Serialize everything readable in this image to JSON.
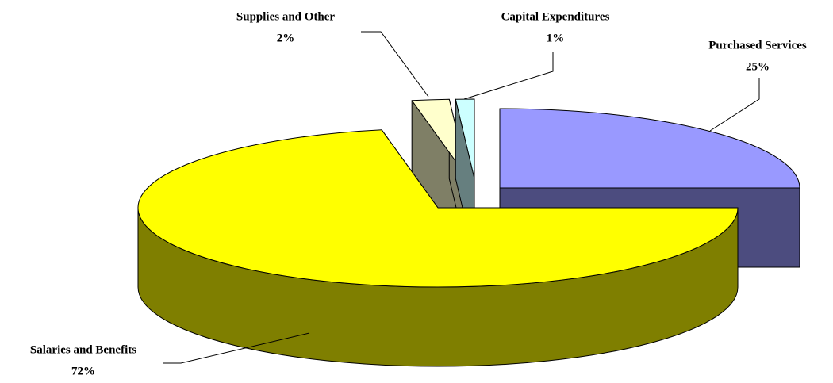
{
  "chart_data": {
    "type": "pie3d",
    "categories": [
      "Purchased Services",
      "Salaries and Benefits",
      "Supplies and Other",
      "Capital Expenditures"
    ],
    "values": [
      25,
      72,
      2,
      1
    ],
    "value_labels": [
      "25%",
      "72%",
      "2%",
      "1%"
    ],
    "colors": [
      "#9999ff",
      "#ffff00",
      "#ffffcc",
      "#ccffff"
    ]
  }
}
